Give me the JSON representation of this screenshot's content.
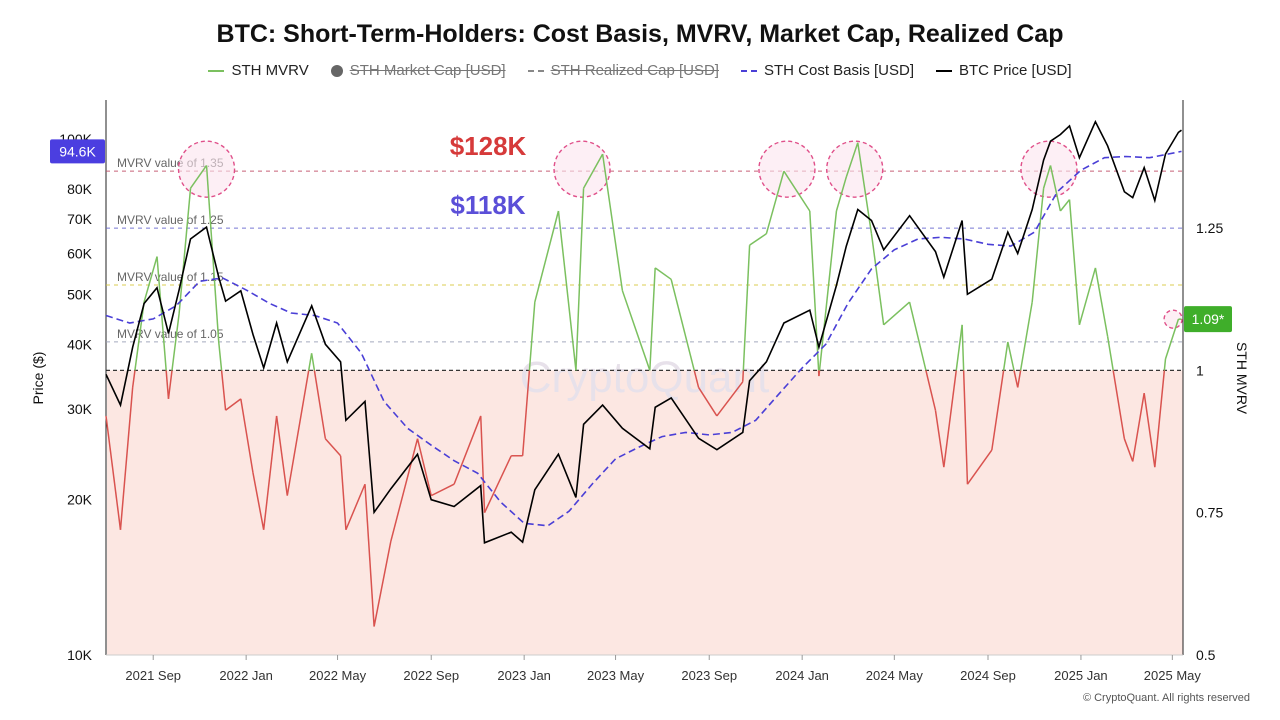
{
  "chart_data": {
    "type": "line",
    "title": "BTC: Short-Term-Holders: Cost Basis, MVRV, Market Cap, Realized Cap",
    "legend": [
      {
        "label": "STH MVRV",
        "marker": "line",
        "color": "#7bc05f",
        "active": true
      },
      {
        "label": "STH Market Cap [USD]",
        "marker": "dot",
        "color": "#666666",
        "active": false
      },
      {
        "label": "STH Realized Cap [USD]",
        "marker": "dash",
        "color": "#888888",
        "active": false
      },
      {
        "label": "STH Cost Basis [USD]",
        "marker": "dash",
        "color": "#4a3fd6",
        "active": true
      },
      {
        "label": "BTC Price [USD]",
        "marker": "line",
        "color": "#000000",
        "active": true
      }
    ],
    "ylabel_left": "Price ($)",
    "ylabel_right": "STH MVRV",
    "y_left_scale": "log",
    "y_left_ticks": [
      {
        "label": "10K",
        "value": 10000
      },
      {
        "label": "20K",
        "value": 20000
      },
      {
        "label": "30K",
        "value": 30000
      },
      {
        "label": "40K",
        "value": 40000
      },
      {
        "label": "50K",
        "value": 50000
      },
      {
        "label": "60K",
        "value": 60000
      },
      {
        "label": "70K",
        "value": 70000
      },
      {
        "label": "80K",
        "value": 80000
      },
      {
        "label": "100K",
        "value": 100000
      }
    ],
    "y_right_ticks": [
      {
        "label": "0.5",
        "value": 0.5
      },
      {
        "label": "0.75",
        "value": 0.75
      },
      {
        "label": "1",
        "value": 1
      },
      {
        "label": "1.25",
        "value": 1.25
      }
    ],
    "x_ticks": [
      "2021 Sep",
      "2022 Jan",
      "2022 May",
      "2022 Sep",
      "2023 Jan",
      "2023 May",
      "2023 Sep",
      "2024 Jan",
      "2024 May",
      "2024 Sep",
      "2025 Jan",
      "2025 May"
    ],
    "reference_lines": [
      {
        "label": "MVRV value of 1.35",
        "value": 1.35,
        "color": "#c0506a"
      },
      {
        "label": "MVRV value of 1.25",
        "value": 1.25,
        "color": "#6a6ad0"
      },
      {
        "label": "MVRV value of 1.15",
        "value": 1.15,
        "color": "#d8c840"
      },
      {
        "label": "MVRV value of 1.05",
        "value": 1.05,
        "color": "#9aa0b8"
      },
      {
        "label": "",
        "value": 1.0,
        "color": "#222222"
      }
    ],
    "annotations": [
      {
        "text": "$128K",
        "color": "#d63a3a"
      },
      {
        "text": "$118K",
        "color": "#5b4fd8"
      }
    ],
    "current_price_badge": "94.6K",
    "current_mvrv_badge": "1.09*",
    "watermark": "CryptoQuant",
    "highlight_circles": [
      {
        "date": "2021-11-10",
        "value": 1.35
      },
      {
        "date": "2023-03-18",
        "value": 1.35
      },
      {
        "date": "2023-12-12",
        "value": 1.35
      },
      {
        "date": "2024-03-10",
        "value": 1.35
      },
      {
        "date": "2024-11-20",
        "value": 1.35
      },
      {
        "date": "2025-05-02",
        "value": 1.09
      }
    ],
    "series": [
      {
        "name": "BTC Price [USD]",
        "color": "#000000",
        "axis": "left",
        "points": [
          [
            "2021-07-01",
            35000
          ],
          [
            "2021-07-20",
            30500
          ],
          [
            "2021-08-05",
            39500
          ],
          [
            "2021-08-20",
            48000
          ],
          [
            "2021-09-06",
            51500
          ],
          [
            "2021-09-21",
            42000
          ],
          [
            "2021-10-05",
            51000
          ],
          [
            "2021-10-20",
            64000
          ],
          [
            "2021-11-10",
            67500
          ],
          [
            "2021-11-26",
            54000
          ],
          [
            "2021-12-05",
            48500
          ],
          [
            "2021-12-25",
            50800
          ],
          [
            "2022-01-10",
            41800
          ],
          [
            "2022-01-24",
            36000
          ],
          [
            "2022-02-10",
            44000
          ],
          [
            "2022-02-24",
            37000
          ],
          [
            "2022-03-28",
            47500
          ],
          [
            "2022-04-15",
            40000
          ],
          [
            "2022-05-05",
            37000
          ],
          [
            "2022-05-12",
            28500
          ],
          [
            "2022-06-06",
            31000
          ],
          [
            "2022-06-18",
            18900
          ],
          [
            "2022-07-10",
            21000
          ],
          [
            "2022-08-14",
            24500
          ],
          [
            "2022-09-01",
            20000
          ],
          [
            "2022-10-01",
            19400
          ],
          [
            "2022-11-05",
            21300
          ],
          [
            "2022-11-10",
            16500
          ],
          [
            "2022-12-15",
            17300
          ],
          [
            "2022-12-30",
            16550
          ],
          [
            "2023-01-15",
            20900
          ],
          [
            "2023-02-15",
            24500
          ],
          [
            "2023-03-10",
            20200
          ],
          [
            "2023-03-20",
            28000
          ],
          [
            "2023-04-14",
            30500
          ],
          [
            "2023-05-10",
            27500
          ],
          [
            "2023-06-15",
            25100
          ],
          [
            "2023-06-22",
            30200
          ],
          [
            "2023-07-13",
            31500
          ],
          [
            "2023-08-18",
            26300
          ],
          [
            "2023-09-11",
            25000
          ],
          [
            "2023-10-15",
            27000
          ],
          [
            "2023-10-24",
            34000
          ],
          [
            "2023-11-15",
            37000
          ],
          [
            "2023-12-08",
            44000
          ],
          [
            "2024-01-11",
            46600
          ],
          [
            "2024-01-23",
            39500
          ],
          [
            "2024-02-15",
            52000
          ],
          [
            "2024-02-28",
            62000
          ],
          [
            "2024-03-14",
            73000
          ],
          [
            "2024-04-01",
            69500
          ],
          [
            "2024-04-17",
            61000
          ],
          [
            "2024-05-21",
            71000
          ],
          [
            "2024-06-24",
            60500
          ],
          [
            "2024-07-05",
            54000
          ],
          [
            "2024-07-29",
            69500
          ],
          [
            "2024-08-05",
            50000
          ],
          [
            "2024-09-06",
            53500
          ],
          [
            "2024-09-27",
            66000
          ],
          [
            "2024-10-10",
            60000
          ],
          [
            "2024-10-29",
            73000
          ],
          [
            "2024-11-13",
            91000
          ],
          [
            "2024-11-22",
            99000
          ],
          [
            "2024-12-05",
            102000
          ],
          [
            "2024-12-17",
            106000
          ],
          [
            "2024-12-30",
            92000
          ],
          [
            "2025-01-20",
            108000
          ],
          [
            "2025-02-05",
            97000
          ],
          [
            "2025-02-27",
            79000
          ],
          [
            "2025-03-10",
            77000
          ],
          [
            "2025-03-25",
            88000
          ],
          [
            "2025-04-08",
            76000
          ],
          [
            "2025-04-22",
            93500
          ],
          [
            "2025-05-09",
            103000
          ],
          [
            "2025-05-13",
            104000
          ]
        ]
      },
      {
        "name": "STH Cost Basis [USD]",
        "color": "#4a3fd6",
        "axis": "left",
        "points": [
          [
            "2021-07-01",
            45500
          ],
          [
            "2021-08-01",
            44000
          ],
          [
            "2021-09-01",
            44800
          ],
          [
            "2021-10-01",
            47500
          ],
          [
            "2021-11-01",
            53000
          ],
          [
            "2021-12-01",
            53800
          ],
          [
            "2022-01-01",
            51000
          ],
          [
            "2022-02-01",
            48000
          ],
          [
            "2022-03-01",
            46000
          ],
          [
            "2022-04-01",
            45500
          ],
          [
            "2022-05-01",
            44000
          ],
          [
            "2022-06-01",
            38500
          ],
          [
            "2022-07-01",
            31000
          ],
          [
            "2022-08-01",
            27500
          ],
          [
            "2022-09-01",
            25500
          ],
          [
            "2022-10-01",
            23800
          ],
          [
            "2022-11-01",
            22500
          ],
          [
            "2022-12-01",
            19800
          ],
          [
            "2023-01-01",
            18000
          ],
          [
            "2023-02-01",
            17800
          ],
          [
            "2023-03-01",
            19000
          ],
          [
            "2023-04-01",
            21500
          ],
          [
            "2023-05-01",
            24000
          ],
          [
            "2023-06-01",
            25300
          ],
          [
            "2023-07-01",
            26500
          ],
          [
            "2023-08-01",
            27000
          ],
          [
            "2023-09-01",
            26700
          ],
          [
            "2023-10-01",
            27000
          ],
          [
            "2023-11-01",
            28500
          ],
          [
            "2023-12-01",
            32000
          ],
          [
            "2024-01-01",
            36000
          ],
          [
            "2024-02-01",
            40000
          ],
          [
            "2024-03-01",
            48000
          ],
          [
            "2024-04-01",
            56000
          ],
          [
            "2024-05-01",
            61000
          ],
          [
            "2024-06-01",
            64000
          ],
          [
            "2024-07-01",
            64500
          ],
          [
            "2024-08-01",
            64000
          ],
          [
            "2024-09-01",
            62500
          ],
          [
            "2024-10-01",
            62000
          ],
          [
            "2024-11-01",
            66000
          ],
          [
            "2024-12-01",
            79000
          ],
          [
            "2025-01-01",
            87000
          ],
          [
            "2025-02-01",
            92000
          ],
          [
            "2025-03-01",
            92500
          ],
          [
            "2025-04-01",
            92000
          ],
          [
            "2025-05-13",
            94600
          ]
        ]
      },
      {
        "name": "STH MVRV",
        "color": "#7bc05f",
        "color_below_1": "#d9534f",
        "axis": "right",
        "threshold": 1.0,
        "points": [
          [
            "2021-07-01",
            0.92
          ],
          [
            "2021-07-20",
            0.72
          ],
          [
            "2021-08-05",
            0.97
          ],
          [
            "2021-08-20",
            1.12
          ],
          [
            "2021-09-06",
            1.2
          ],
          [
            "2021-09-21",
            0.95
          ],
          [
            "2021-10-05",
            1.1
          ],
          [
            "2021-10-20",
            1.32
          ],
          [
            "2021-11-10",
            1.36
          ],
          [
            "2021-11-26",
            1.05
          ],
          [
            "2021-12-05",
            0.93
          ],
          [
            "2021-12-25",
            0.95
          ],
          [
            "2022-01-10",
            0.82
          ],
          [
            "2022-01-24",
            0.72
          ],
          [
            "2022-02-10",
            0.92
          ],
          [
            "2022-02-24",
            0.78
          ],
          [
            "2022-03-28",
            1.03
          ],
          [
            "2022-04-15",
            0.88
          ],
          [
            "2022-05-05",
            0.85
          ],
          [
            "2022-05-12",
            0.72
          ],
          [
            "2022-06-06",
            0.8
          ],
          [
            "2022-06-18",
            0.55
          ],
          [
            "2022-07-10",
            0.7
          ],
          [
            "2022-08-14",
            0.88
          ],
          [
            "2022-09-01",
            0.78
          ],
          [
            "2022-10-01",
            0.8
          ],
          [
            "2022-11-05",
            0.92
          ],
          [
            "2022-11-10",
            0.75
          ],
          [
            "2022-12-15",
            0.85
          ],
          [
            "2022-12-30",
            0.85
          ],
          [
            "2023-01-15",
            1.12
          ],
          [
            "2023-02-15",
            1.28
          ],
          [
            "2023-03-10",
            1.0
          ],
          [
            "2023-03-20",
            1.32
          ],
          [
            "2023-04-14",
            1.38
          ],
          [
            "2023-05-10",
            1.14
          ],
          [
            "2023-06-15",
            1.0
          ],
          [
            "2023-06-22",
            1.18
          ],
          [
            "2023-07-13",
            1.16
          ],
          [
            "2023-08-18",
            0.97
          ],
          [
            "2023-09-11",
            0.92
          ],
          [
            "2023-10-15",
            0.98
          ],
          [
            "2023-10-24",
            1.22
          ],
          [
            "2023-11-15",
            1.24
          ],
          [
            "2023-12-08",
            1.35
          ],
          [
            "2024-01-11",
            1.28
          ],
          [
            "2024-01-23",
            0.99
          ],
          [
            "2024-02-15",
            1.28
          ],
          [
            "2024-02-28",
            1.34
          ],
          [
            "2024-03-14",
            1.4
          ],
          [
            "2024-04-01",
            1.24
          ],
          [
            "2024-04-17",
            1.08
          ],
          [
            "2024-05-21",
            1.12
          ],
          [
            "2024-06-24",
            0.93
          ],
          [
            "2024-07-05",
            0.83
          ],
          [
            "2024-07-29",
            1.08
          ],
          [
            "2024-08-05",
            0.8
          ],
          [
            "2024-09-06",
            0.86
          ],
          [
            "2024-09-27",
            1.05
          ],
          [
            "2024-10-10",
            0.97
          ],
          [
            "2024-10-29",
            1.12
          ],
          [
            "2024-11-13",
            1.32
          ],
          [
            "2024-11-22",
            1.36
          ],
          [
            "2024-12-05",
            1.28
          ],
          [
            "2024-12-17",
            1.3
          ],
          [
            "2024-12-30",
            1.08
          ],
          [
            "2025-01-20",
            1.18
          ],
          [
            "2025-02-05",
            1.06
          ],
          [
            "2025-02-27",
            0.88
          ],
          [
            "2025-03-10",
            0.84
          ],
          [
            "2025-03-25",
            0.96
          ],
          [
            "2025-04-08",
            0.83
          ],
          [
            "2025-04-22",
            1.02
          ],
          [
            "2025-05-09",
            1.09
          ],
          [
            "2025-05-13",
            1.09
          ]
        ]
      }
    ]
  },
  "footer": {
    "copyright": "© CryptoQuant. All rights reserved"
  }
}
